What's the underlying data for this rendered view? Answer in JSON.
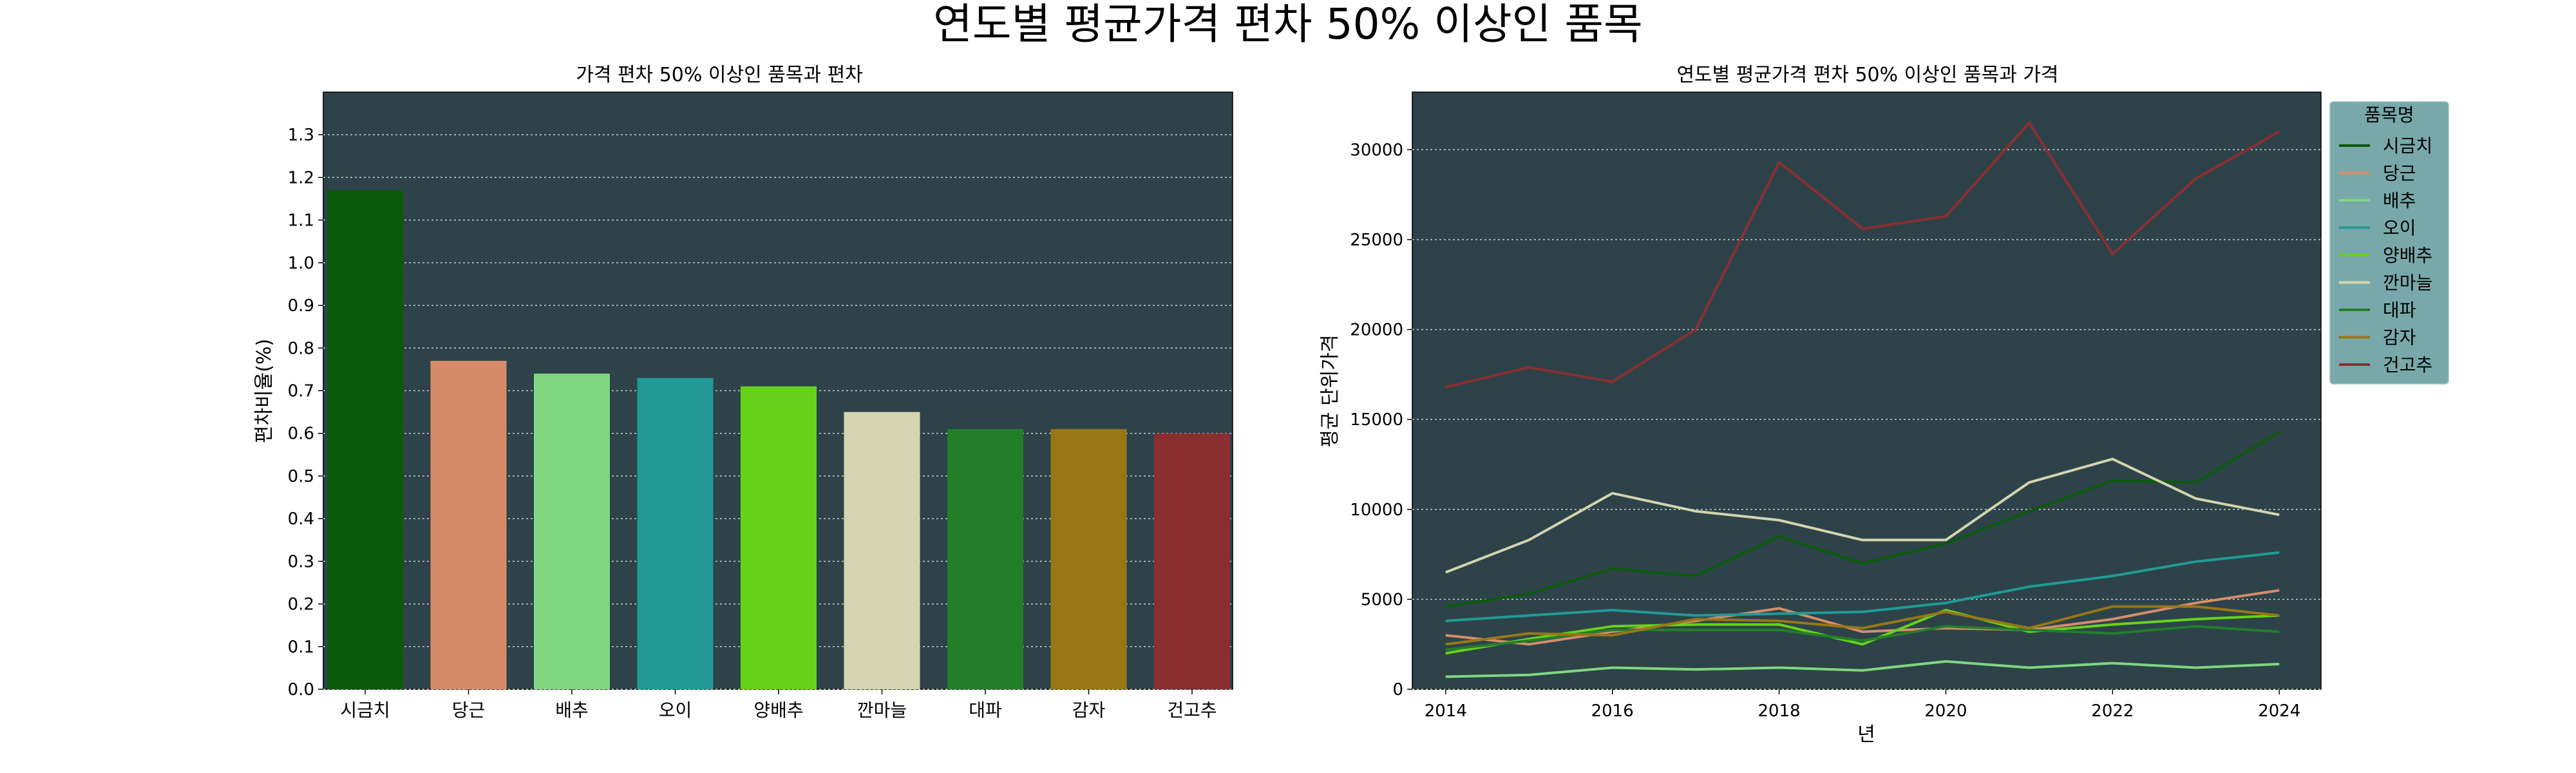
{
  "figure": {
    "title": "연도별 평균가격 편차 50% 이상인 품목"
  },
  "colors": {
    "panel_bg": "#2d4349",
    "legend_bg": "#78a8aa",
    "grid": "#cccccc"
  },
  "chart_data": [
    {
      "type": "bar",
      "title": "가격 편차 50% 이상인 품목과 편차",
      "xlabel": "",
      "ylabel": "편차비율(%)",
      "ylim": [
        0,
        1.4
      ],
      "yticks": [
        0.0,
        0.1,
        0.2,
        0.3,
        0.4,
        0.5,
        0.6,
        0.7,
        0.8,
        0.9,
        1.0,
        1.1,
        1.2,
        1.3
      ],
      "grid": "horizontal dotted",
      "categories": [
        "시금치",
        "당근",
        "배추",
        "오이",
        "양배추",
        "깐마늘",
        "대파",
        "감자",
        "건고추"
      ],
      "values": [
        1.17,
        0.77,
        0.74,
        0.73,
        0.71,
        0.65,
        0.61,
        0.61,
        0.6
      ],
      "colors": [
        "#0b5a0b",
        "#d68c6b",
        "#80d681",
        "#219a96",
        "#66d21a",
        "#d4d4b0",
        "#237e2a",
        "#987716",
        "#8b2e30"
      ]
    },
    {
      "type": "line",
      "title": "연도별 평균가격 편차 50% 이상인 품목과 가격",
      "xlabel": "년",
      "ylabel": "평균 단위가격",
      "xlim": [
        2013.6,
        2024.5
      ],
      "ylim": [
        0,
        33200
      ],
      "xticks": [
        2014,
        2016,
        2018,
        2020,
        2022,
        2024
      ],
      "yticks": [
        0,
        5000,
        10000,
        15000,
        20000,
        25000,
        30000
      ],
      "grid": "horizontal dotted",
      "legend": {
        "title": "품목명",
        "position": "outside upper right"
      },
      "x": [
        2014,
        2015,
        2016,
        2017,
        2018,
        2019,
        2020,
        2021,
        2022,
        2023,
        2024
      ],
      "series": [
        {
          "name": "시금치",
          "color": "#0b5a0b",
          "values": [
            4600,
            5300,
            6700,
            6300,
            8500,
            7000,
            8100,
            9900,
            11600,
            11500,
            14300
          ]
        },
        {
          "name": "당근",
          "color": "#d68c6b",
          "values": [
            3000,
            2500,
            3200,
            3800,
            4500,
            3200,
            3400,
            3300,
            3900,
            4800,
            5500
          ]
        },
        {
          "name": "배추",
          "color": "#80d681",
          "values": [
            700,
            800,
            1200,
            1100,
            1200,
            1050,
            1550,
            1200,
            1450,
            1200,
            1400
          ]
        },
        {
          "name": "오이",
          "color": "#219a96",
          "values": [
            3800,
            4100,
            4400,
            4100,
            4200,
            4300,
            4800,
            5700,
            6300,
            7100,
            7600
          ]
        },
        {
          "name": "양배추",
          "color": "#66d21a",
          "values": [
            2000,
            2800,
            3500,
            3600,
            3600,
            2500,
            4400,
            3200,
            3600,
            3900,
            4100
          ]
        },
        {
          "name": "깐마늘",
          "color": "#d4d4b0",
          "values": [
            6500,
            8300,
            10900,
            9900,
            9400,
            8300,
            8300,
            11500,
            12800,
            10600,
            9700
          ]
        },
        {
          "name": "대파",
          "color": "#237e2a",
          "values": [
            2200,
            2700,
            3300,
            3300,
            3300,
            2700,
            3500,
            3300,
            3100,
            3500,
            3200
          ]
        },
        {
          "name": "감자",
          "color": "#987716",
          "values": [
            2500,
            3100,
            3000,
            3900,
            3800,
            3400,
            4300,
            3400,
            4600,
            4600,
            4100
          ]
        },
        {
          "name": "건고추",
          "color": "#8b2e30",
          "values": [
            16800,
            17900,
            17100,
            20000,
            29300,
            25600,
            26300,
            31500,
            24200,
            28400,
            31000
          ]
        }
      ]
    }
  ]
}
